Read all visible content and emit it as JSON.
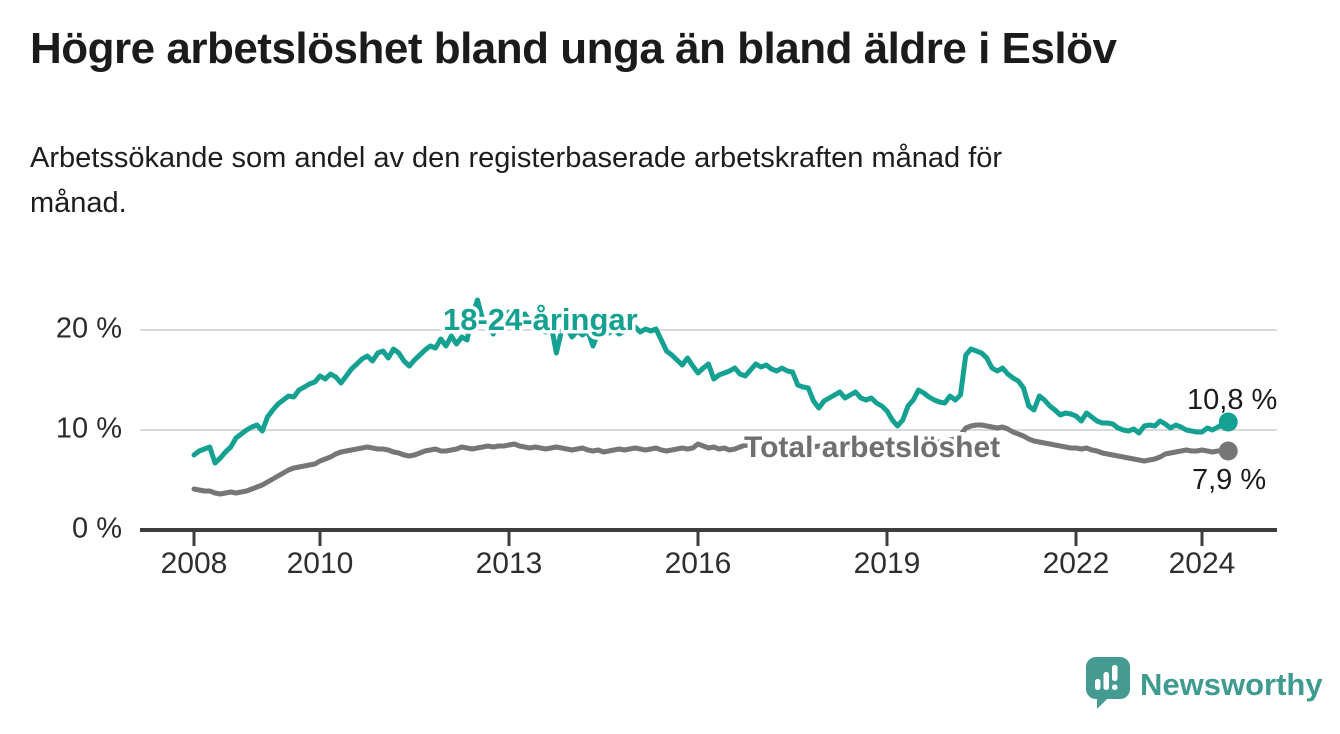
{
  "header": {
    "title": "Högre arbetslöshet bland unga än bland äldre i Eslöv",
    "subtitle": "Arbetssökande som andel av den registerbaserade arbetskraften månad för månad."
  },
  "chart_data": {
    "type": "line",
    "title": "Högre arbetslöshet bland unga än bland äldre i Eslöv",
    "xlabel": "",
    "ylabel": "",
    "x_start": "2008-01",
    "x_end": "2024-06",
    "frequency": "monthly",
    "ylim": [
      0,
      24
    ],
    "grid": "horizontal",
    "legend_position": "inline-labels",
    "yticks": [
      {
        "value": 0,
        "label": "0 %"
      },
      {
        "value": 10,
        "label": "10 %"
      },
      {
        "value": 20,
        "label": "20 %"
      }
    ],
    "xticks": [
      {
        "year": 2008,
        "label": "2008"
      },
      {
        "year": 2010,
        "label": "2010"
      },
      {
        "year": 2013,
        "label": "2013"
      },
      {
        "year": 2016,
        "label": "2016"
      },
      {
        "year": 2019,
        "label": "2019"
      },
      {
        "year": 2022,
        "label": "2022"
      },
      {
        "year": 2024,
        "label": "2024"
      }
    ],
    "series": [
      {
        "name": "Total arbetslöshet",
        "color": "#767676",
        "label_color": "#6f6f6f",
        "end_label": "7,9 %",
        "end_value": 7.9,
        "values": [
          4.1,
          4.0,
          3.9,
          3.9,
          3.7,
          3.6,
          3.7,
          3.8,
          3.7,
          3.8,
          3.9,
          4.1,
          4.3,
          4.5,
          4.8,
          5.1,
          5.4,
          5.7,
          6.0,
          6.2,
          6.3,
          6.4,
          6.5,
          6.6,
          6.9,
          7.1,
          7.3,
          7.6,
          7.8,
          7.9,
          8.0,
          8.1,
          8.2,
          8.3,
          8.2,
          8.1,
          8.1,
          8.0,
          7.8,
          7.7,
          7.5,
          7.4,
          7.5,
          7.7,
          7.9,
          8.0,
          8.1,
          7.9,
          7.9,
          8.0,
          8.1,
          8.3,
          8.2,
          8.1,
          8.2,
          8.3,
          8.4,
          8.3,
          8.4,
          8.4,
          8.5,
          8.6,
          8.4,
          8.3,
          8.2,
          8.3,
          8.2,
          8.1,
          8.2,
          8.3,
          8.2,
          8.1,
          8.0,
          8.1,
          8.2,
          8.0,
          7.9,
          8.0,
          7.8,
          7.9,
          8.0,
          8.1,
          8.0,
          8.1,
          8.2,
          8.1,
          8.0,
          8.1,
          8.2,
          8.0,
          7.9,
          8.0,
          8.1,
          8.2,
          8.1,
          8.2,
          8.6,
          8.4,
          8.2,
          8.3,
          8.1,
          8.2,
          8.0,
          8.1,
          8.3,
          8.5,
          8.4,
          8.3,
          8.2,
          8.4,
          8.5,
          8.3,
          8.2,
          8.3,
          8.4,
          8.2,
          8.1,
          8.2,
          8.3,
          8.4,
          8.3,
          8.2,
          8.1,
          8.2,
          8.3,
          8.2,
          8.1,
          8.0,
          8.1,
          8.2,
          8.1,
          8.2,
          8.3,
          8.2,
          8.4,
          8.5,
          8.6,
          8.7,
          8.8,
          8.7,
          8.6,
          8.7,
          8.8,
          8.9,
          9.0,
          9.1,
          9.5,
          10.2,
          10.4,
          10.5,
          10.5,
          10.4,
          10.3,
          10.2,
          10.3,
          10.1,
          9.8,
          9.6,
          9.4,
          9.1,
          8.9,
          8.8,
          8.7,
          8.6,
          8.5,
          8.4,
          8.3,
          8.2,
          8.2,
          8.1,
          8.2,
          8.0,
          7.9,
          7.7,
          7.6,
          7.5,
          7.4,
          7.3,
          7.2,
          7.1,
          7.0,
          6.9,
          7.0,
          7.1,
          7.3,
          7.6,
          7.7,
          7.8,
          7.9,
          8.0,
          7.9,
          7.9,
          8.0,
          7.9,
          7.8,
          7.9,
          7.9,
          7.9
        ]
      },
      {
        "name": "18-24-åringar",
        "color": "#14a192",
        "label_color": "#14a192",
        "end_label": "10,8 %",
        "end_value": 10.8,
        "values": [
          7.5,
          7.9,
          8.1,
          8.3,
          6.7,
          7.2,
          7.8,
          8.3,
          9.2,
          9.6,
          10.0,
          10.3,
          10.5,
          9.9,
          11.3,
          12.0,
          12.6,
          13.0,
          13.4,
          13.3,
          14.0,
          14.3,
          14.6,
          14.8,
          15.4,
          15.1,
          15.6,
          15.3,
          14.7,
          15.4,
          16.1,
          16.6,
          17.1,
          17.4,
          16.9,
          17.7,
          17.9,
          17.2,
          18.1,
          17.7,
          16.9,
          16.4,
          17.0,
          17.5,
          18.0,
          18.4,
          18.2,
          19.1,
          18.4,
          19.4,
          18.6,
          19.3,
          19.0,
          21.5,
          23.0,
          21.0,
          20.4,
          19.6,
          20.9,
          20.1,
          21.8,
          20.3,
          21.0,
          21.6,
          20.8,
          21.2,
          20.4,
          19.8,
          20.6,
          17.7,
          19.9,
          20.2,
          19.3,
          19.9,
          19.5,
          19.9,
          18.4,
          19.8,
          20.1,
          19.7,
          20.0,
          19.6,
          19.9,
          20.1,
          20.3,
          19.8,
          20.1,
          19.9,
          20.1,
          19.0,
          17.9,
          17.5,
          17.0,
          16.5,
          17.2,
          16.4,
          15.7,
          16.2,
          16.6,
          15.1,
          15.5,
          15.7,
          15.9,
          16.2,
          15.6,
          15.4,
          16.0,
          16.6,
          16.3,
          16.5,
          16.1,
          15.9,
          16.2,
          15.9,
          15.8,
          14.5,
          14.3,
          14.2,
          12.9,
          12.2,
          12.9,
          13.2,
          13.5,
          13.8,
          13.2,
          13.5,
          13.8,
          13.2,
          13.0,
          13.2,
          12.7,
          12.4,
          11.9,
          11.0,
          10.4,
          11.0,
          12.4,
          13.0,
          14.0,
          13.7,
          13.3,
          13.0,
          12.8,
          12.7,
          13.4,
          13.0,
          13.5,
          17.5,
          18.1,
          17.9,
          17.7,
          17.2,
          16.2,
          15.9,
          16.2,
          15.6,
          15.2,
          14.9,
          14.2,
          12.4,
          12.0,
          13.4,
          13.0,
          12.4,
          12.0,
          11.5,
          11.7,
          11.6,
          11.4,
          10.9,
          11.7,
          11.3,
          10.9,
          10.7,
          10.7,
          10.6,
          10.2,
          10.0,
          9.9,
          10.1,
          9.7,
          10.4,
          10.5,
          10.4,
          10.9,
          10.6,
          10.2,
          10.5,
          10.3,
          10.0,
          9.9,
          9.8,
          9.8,
          10.2,
          10.0,
          10.3,
          10.5,
          10.8
        ]
      }
    ]
  },
  "footer": {
    "brand": "Newsworthy",
    "logo_icon": "bar-chart-speech-bubble-icon"
  },
  "colors": {
    "accent_teal": "#14a192",
    "line_gray": "#767676",
    "axis": "#3d3d3d",
    "gridline": "#dadada",
    "text": "#1b1b1b",
    "logo_teal": "#459b91"
  }
}
